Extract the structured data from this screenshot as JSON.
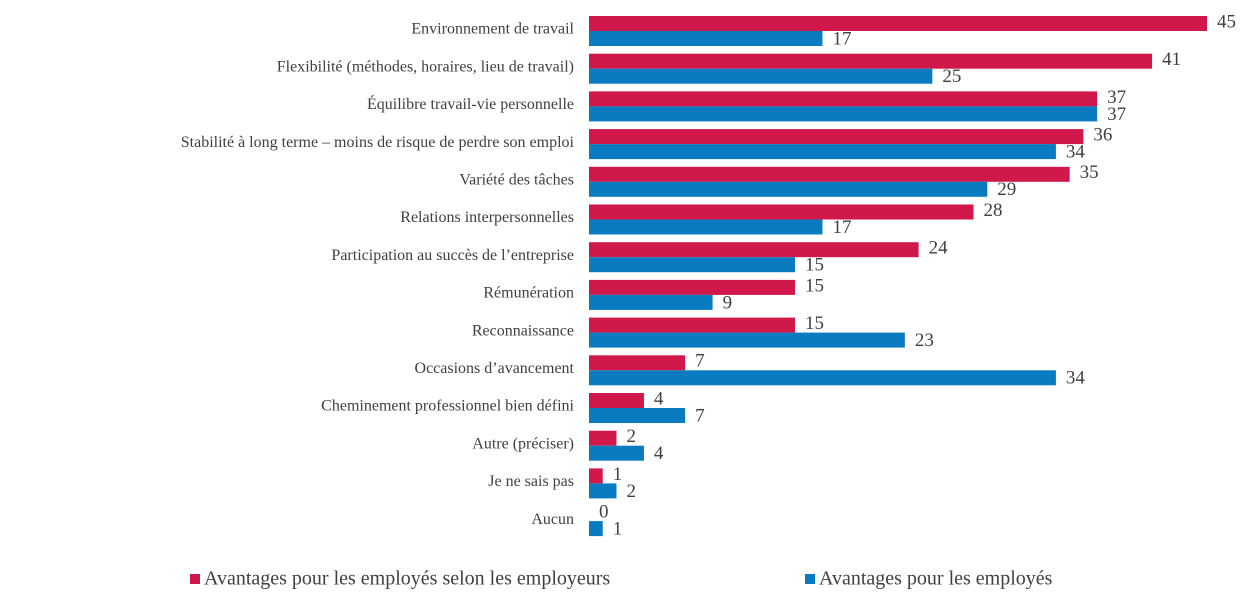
{
  "chart_data": {
    "type": "bar",
    "orientation": "horizontal",
    "categories": [
      "Environnement de travail",
      "Flexibilité (méthodes, horaires, lieu de travail)",
      "Équilibre travail-vie personnelle",
      "Stabilité à long terme – moins de risque de perdre son emploi",
      "Variété des tâches",
      "Relations interpersonnelles",
      "Participation au succès de l’entreprise",
      "Rémunération",
      "Reconnaissance",
      "Occasions d’avancement",
      "Cheminement professionnel bien défini",
      "Autre (préciser)",
      "Je ne sais pas",
      "Aucun"
    ],
    "series": [
      {
        "name": "Avantages pour les employés selon les employeurs",
        "color": "#d0184a",
        "values": [
          45,
          41,
          37,
          36,
          35,
          28,
          24,
          15,
          15,
          7,
          4,
          2,
          1,
          0
        ]
      },
      {
        "name": "Avantages pour les employés",
        "color": "#0b7bc1",
        "values": [
          17,
          25,
          37,
          34,
          29,
          17,
          15,
          9,
          23,
          34,
          7,
          4,
          2,
          1
        ]
      }
    ],
    "legend": "bottom"
  }
}
